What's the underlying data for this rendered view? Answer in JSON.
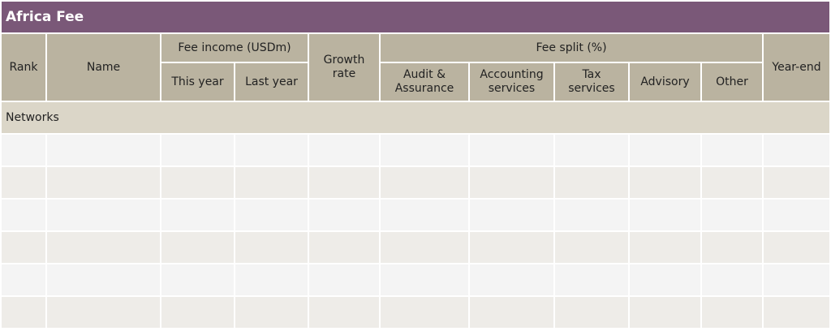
{
  "title": "Africa Fee",
  "headers": {
    "rank": "Rank",
    "name": "Name",
    "fee_income": "Fee income (USDm)",
    "this_year": "This year",
    "last_year": "Last year",
    "growth_rate": "Growth rate",
    "fee_split": "Fee split (%)",
    "audit": "Audit & Assurance",
    "accounting": "Accounting services",
    "tax": "Tax services",
    "advisory": "Advisory",
    "other": "Other",
    "year_end": "Year-end"
  },
  "section": "Networks",
  "rows": [
    [],
    [],
    [],
    [],
    [],
    []
  ],
  "colors": {
    "title_bg": "#7a5878",
    "header_bg": "#bab3a0",
    "section_bg": "#dbd6c8",
    "row_bg": "#f4f4f4",
    "row_alt_bg": "#eeece8"
  }
}
